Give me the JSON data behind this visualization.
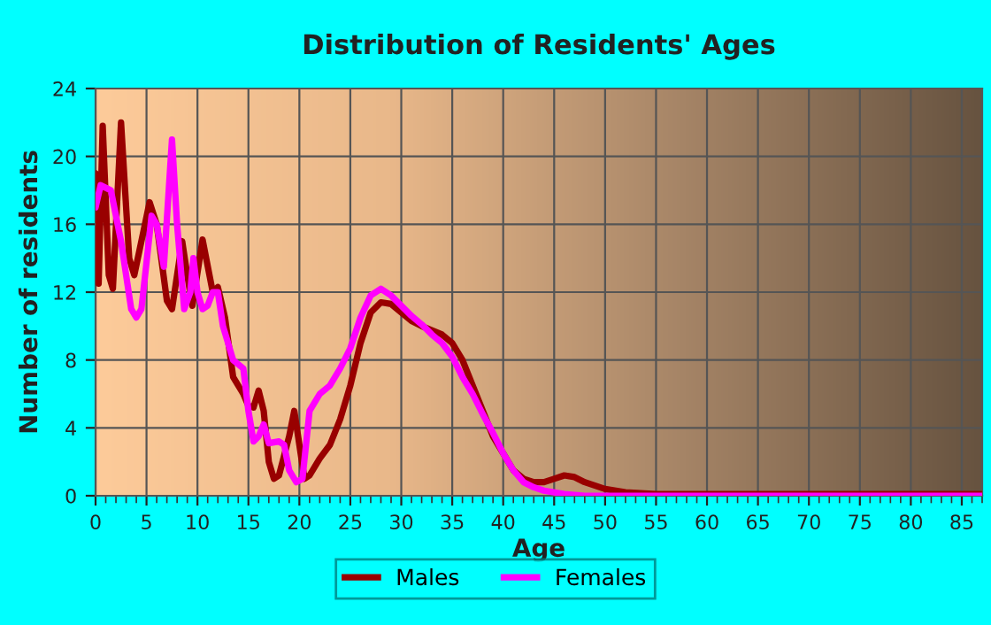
{
  "chart_data": {
    "type": "line",
    "title": "Distribution of Residents' Ages",
    "xlabel": "Age",
    "ylabel": "Number of residents",
    "xlim": [
      0,
      87
    ],
    "xticks": [
      0,
      5,
      10,
      15,
      20,
      25,
      30,
      35,
      40,
      45,
      50,
      55,
      60,
      65,
      70,
      75,
      80,
      85
    ],
    "ylim": [
      0,
      24
    ],
    "yticks": [
      0,
      4,
      8,
      12,
      16,
      20,
      24
    ],
    "grid": true,
    "legend": "bottom",
    "line_style": "solid",
    "marker": "none",
    "series": [
      {
        "name": "Males",
        "color": "#990000",
        "x": [
          0,
          0.3,
          0.7,
          1.3,
          1.7,
          2.5,
          3.3,
          3.8,
          5.3,
          6,
          7,
          7.5,
          8.5,
          9,
          9.5,
          10.5,
          11.5,
          12,
          12.7,
          13.5,
          14.5,
          15,
          15.5,
          16,
          16.5,
          17,
          17.5,
          18,
          19,
          19.5,
          20,
          20.5,
          21,
          22,
          23,
          24,
          25,
          26,
          27,
          28,
          29,
          30,
          31,
          32,
          34,
          35,
          36,
          37,
          38,
          39,
          40,
          41,
          42,
          43,
          44,
          45,
          46,
          47,
          48,
          50,
          52,
          55,
          60,
          87
        ],
        "values": [
          19,
          12.5,
          21.8,
          13,
          12.2,
          22,
          14,
          13,
          17.3,
          16,
          11.5,
          11,
          15,
          13,
          11.2,
          15.1,
          12,
          12.3,
          10.5,
          7,
          6,
          5.3,
          5.2,
          6.2,
          5,
          2,
          1,
          1.2,
          3.5,
          5,
          3,
          1,
          1.2,
          2.2,
          3,
          4.5,
          6.5,
          9,
          10.8,
          11.4,
          11.3,
          10.8,
          10.3,
          10,
          9.5,
          9,
          8,
          6.5,
          5,
          3.5,
          2.5,
          1.5,
          1,
          0.8,
          0.8,
          1,
          1.2,
          1.1,
          0.8,
          0.4,
          0.2,
          0.1,
          0.1,
          0.1
        ]
      },
      {
        "name": "Females",
        "color": "#ff00ff",
        "x": [
          0,
          0.5,
          1.5,
          2.5,
          3.5,
          4,
          4.5,
          5.5,
          6,
          6.7,
          7.5,
          8,
          8.7,
          9.3,
          9.6,
          10,
          10.5,
          11,
          11.5,
          12,
          12.5,
          13.5,
          14.5,
          15,
          15.5,
          16,
          16.5,
          17,
          18,
          18.5,
          19,
          19.7,
          20.3,
          21,
          22,
          23,
          24,
          25,
          26,
          27,
          28,
          29,
          30,
          31,
          32,
          33,
          34,
          35,
          36,
          37,
          38,
          39,
          40,
          41,
          42,
          43,
          44,
          46,
          48,
          87
        ],
        "values": [
          17,
          18.3,
          18,
          15,
          11,
          10.5,
          11,
          16.5,
          16,
          13.5,
          21,
          16,
          11,
          12,
          14,
          12,
          11,
          11.2,
          12,
          12,
          10,
          8,
          7.5,
          5,
          3.2,
          3.5,
          4.2,
          3.1,
          3.2,
          3,
          1.5,
          0.8,
          1,
          5,
          6,
          6.5,
          7.5,
          8.7,
          10.5,
          11.8,
          12.2,
          11.8,
          11.2,
          10.6,
          10.1,
          9.5,
          9,
          8.2,
          7,
          6,
          4.8,
          3.7,
          2.5,
          1.5,
          0.8,
          0.5,
          0.3,
          0.1,
          0,
          0
        ]
      }
    ]
  }
}
